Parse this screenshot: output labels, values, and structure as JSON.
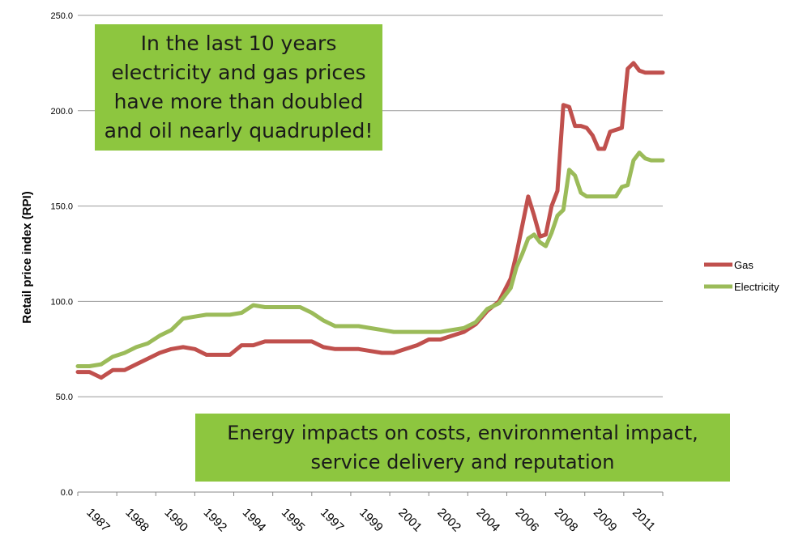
{
  "chart_data": {
    "type": "line",
    "title": "",
    "xlabel": "",
    "ylabel": "Retail price index (RPI)",
    "ylim": [
      0,
      250
    ],
    "yticks": [
      "0.0",
      "50.0",
      "100.0",
      "150.0",
      "200.0",
      "250.0"
    ],
    "grid": "horizontal",
    "legend_position": "right",
    "x_tick_labels": [
      "1987",
      "1988",
      "1990",
      "1992",
      "1994",
      "1995",
      "1997",
      "1999",
      "2001",
      "2002",
      "2004",
      "2006",
      "2008",
      "2009",
      "2011"
    ],
    "x": [
      1987.0,
      1987.5,
      1988.0,
      1988.5,
      1989.0,
      1989.5,
      1990.0,
      1990.5,
      1991.0,
      1991.5,
      1992.0,
      1992.5,
      1993.0,
      1993.5,
      1994.0,
      1994.5,
      1995.0,
      1995.5,
      1996.0,
      1996.5,
      1997.0,
      1997.5,
      1998.0,
      1998.5,
      1999.0,
      1999.5,
      2000.0,
      2000.5,
      2001.0,
      2001.5,
      2002.0,
      2002.5,
      2003.0,
      2003.5,
      2004.0,
      2004.5,
      2005.0,
      2005.25,
      2005.5,
      2005.75,
      2006.0,
      2006.25,
      2006.5,
      2006.75,
      2007.0,
      2007.25,
      2007.5,
      2007.75,
      2008.0,
      2008.25,
      2008.5,
      2008.75,
      2009.0,
      2009.25,
      2009.5,
      2009.75,
      2010.0,
      2010.25,
      2010.5,
      2010.75,
      2011.0,
      2011.25,
      2011.5,
      2011.75,
      2012.0
    ],
    "series": [
      {
        "name": "Gas",
        "color": "#c0504d",
        "values": [
          63,
          63,
          60,
          64,
          64,
          67,
          70,
          73,
          75,
          76,
          75,
          72,
          72,
          72,
          77,
          77,
          79,
          79,
          79,
          79,
          79,
          76,
          75,
          75,
          75,
          74,
          73,
          73,
          75,
          77,
          80,
          80,
          82,
          84,
          88,
          95,
          100,
          106,
          112,
          125,
          140,
          155,
          145,
          134,
          135,
          150,
          158,
          203,
          202,
          192,
          192,
          191,
          187,
          180,
          180,
          189,
          190,
          191,
          222,
          225,
          221,
          220,
          220,
          220,
          220
        ]
      },
      {
        "name": "Electricity",
        "color": "#9bbb59",
        "values": [
          66,
          66,
          67,
          71,
          73,
          76,
          78,
          82,
          85,
          91,
          92,
          93,
          93,
          93,
          94,
          98,
          97,
          97,
          97,
          97,
          94,
          90,
          87,
          87,
          87,
          86,
          85,
          84,
          84,
          84,
          84,
          84,
          85,
          86,
          89,
          96,
          99,
          103,
          107,
          118,
          125,
          133,
          135,
          131,
          129,
          136,
          145,
          148,
          169,
          166,
          157,
          155,
          155,
          155,
          155,
          155,
          155,
          160,
          161,
          174,
          178,
          175,
          174,
          174,
          174
        ]
      }
    ],
    "annotations": [
      "In the last 10 years\nelectricity and gas prices\nhave more than doubled\nand oil nearly quadrupled!",
      "Energy impacts on costs, environmental impact,\nservice delivery and reputation"
    ]
  }
}
